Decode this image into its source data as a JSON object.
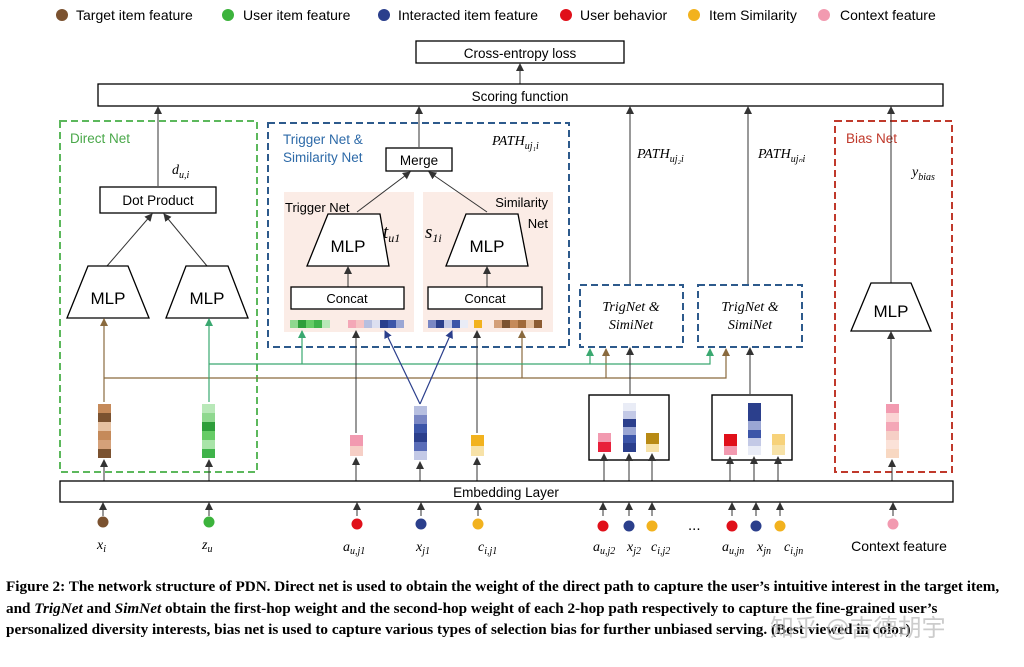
{
  "legend": [
    {
      "label": "Target item feature",
      "color": "#7b5230"
    },
    {
      "label": "User item feature",
      "color": "#3cb33c"
    },
    {
      "label": "Interacted item feature",
      "color": "#2b3f8c"
    },
    {
      "label": "User behavior",
      "color": "#e0101a"
    },
    {
      "label": "Item Similarity",
      "color": "#f2b21e"
    },
    {
      "label": "Context feature",
      "color": "#f29ab0"
    }
  ],
  "boxes": {
    "loss": "Cross-entropy loss",
    "scoring": "Scoring function",
    "embedding": "Embedding Layer",
    "dot_product": "Dot Product",
    "merge": "Merge",
    "concat_trigger": "Concat",
    "concat_similarity": "Concat",
    "mlp": "MLP",
    "trignet_1": "TrigNet &",
    "siminet_1": "SimiNet",
    "trignet_2": "TrigNet &",
    "siminet_2": "SimiNet"
  },
  "panels": {
    "direct": "Direct Net",
    "trigger_line1": "Trigger  Net &",
    "trigger_line2": "Similarity  Net",
    "trigger_sub": "Trigger  Net",
    "similarity_sub_line1": "Similarity",
    "similarity_sub_line2": "Net",
    "bias": "Bias Net"
  },
  "math": {
    "d_ui": "d",
    "d_ui_sub": "u,i",
    "t_u1": "t",
    "t_u1_sub": "u1",
    "s_1i": "s",
    "s_1i_sub": "1i",
    "path1": "PATH",
    "path1_sub": "uj₁i",
    "path2": "PATH",
    "path2_sub": "uj₂i",
    "pathn": "PATH",
    "pathn_sub": "ujₙi",
    "y_bias": "y",
    "y_bias_sub": "bias"
  },
  "inputs": {
    "x_i": "x",
    "x_i_sub": "i",
    "z_u": "z",
    "z_u_sub": "u",
    "a_uj1": "a",
    "a_uj1_sub": "u,j1",
    "x_j1": "x",
    "x_j1_sub": "j1",
    "c_ij1": "c",
    "c_ij1_sub": "i,j1",
    "a_uj2": "a",
    "a_uj2_sub": "u,j2",
    "x_j2": "x",
    "x_j2_sub": "j2",
    "c_ij2": "c",
    "c_ij2_sub": "i,j2",
    "ellipsis": "...",
    "a_ujn": "a",
    "a_ujn_sub": "u,jn",
    "x_jn": "x",
    "x_jn_sub": "jn",
    "c_ijn": "c",
    "c_ijn_sub": "i,jn",
    "context": "Context feature"
  },
  "caption": {
    "p1": "Figure 2: The network structure of PDN. Direct net is used to obtain the weight of the direct path to capture the user’s intuitive interest in the target item, and ",
    "trignet": "TrigNet",
    "p2": " and ",
    "siminet": "SimNet",
    "p3": " obtain the first-hop weight and the second-hop weight of each 2-hop path respectively to capture the fine-grained user’s personalized diversity interests, bias net is used to capture various types of selection bias for further unbiased serving. (Best viewed in color)"
  },
  "watermark": "知乎 @吉德胡宇"
}
